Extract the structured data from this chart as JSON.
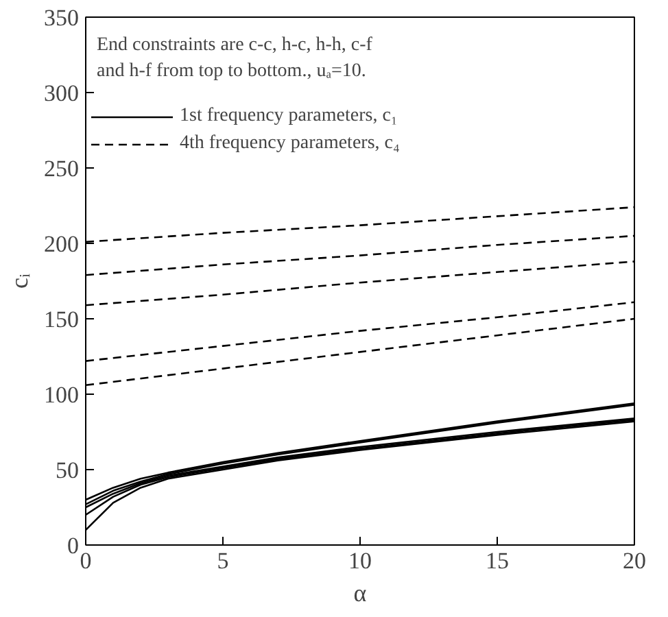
{
  "chart_data": {
    "type": "line",
    "xlabel": "α",
    "ylabel": "cᵢ",
    "annotations": [
      "End constraints are c-c, h-c, h-h, c-f",
      "and h-f from top to bottom., uₐ=10."
    ],
    "x": [
      0,
      1,
      2,
      3,
      5,
      7,
      10,
      15,
      20
    ],
    "series": [
      {
        "name": "1st frequency parameters, c₁",
        "color": "#000000",
        "line_style": "solid",
        "values": [
          30,
          38,
          44,
          48,
          55,
          61,
          69,
          82,
          94
        ]
      },
      {
        "color": "#000000",
        "line_style": "solid",
        "values": [
          27,
          36,
          42,
          47,
          54,
          60,
          68,
          81,
          93
        ]
      },
      {
        "color": "#000000",
        "line_style": "solid",
        "values": [
          25,
          34,
          41,
          46,
          52,
          58,
          65,
          75,
          84
        ]
      },
      {
        "color": "#000000",
        "line_style": "solid",
        "values": [
          20,
          32,
          40,
          45,
          51,
          57,
          64,
          74,
          83
        ]
      },
      {
        "color": "#000000",
        "line_style": "solid",
        "values": [
          10,
          28,
          38,
          44,
          50,
          56,
          63,
          73,
          82
        ]
      },
      {
        "name": "4th frequency parameters, c₄",
        "color": "#000000",
        "line_style": "dashed",
        "x": [
          0,
          5,
          10,
          15,
          20
        ],
        "values": [
          201,
          207,
          212,
          218,
          224
        ]
      },
      {
        "color": "#000000",
        "line_style": "dashed",
        "x": [
          0,
          5,
          10,
          15,
          20
        ],
        "values": [
          179,
          186,
          192,
          199,
          205
        ]
      },
      {
        "color": "#000000",
        "line_style": "dashed",
        "x": [
          0,
          5,
          10,
          15,
          20
        ],
        "values": [
          159,
          166,
          174,
          181,
          188
        ]
      },
      {
        "color": "#000000",
        "line_style": "dashed",
        "x": [
          0,
          5,
          10,
          15,
          20
        ],
        "values": [
          122,
          132,
          142,
          151,
          161
        ]
      },
      {
        "color": "#000000",
        "line_style": "dashed",
        "x": [
          0,
          5,
          10,
          15,
          20
        ],
        "values": [
          106,
          117,
          128,
          139,
          150
        ]
      }
    ],
    "xlim": [
      0,
      20
    ],
    "xticks": [
      0,
      5,
      10,
      15,
      20
    ],
    "ylim": [
      0,
      350
    ],
    "yticks": [
      0,
      50,
      100,
      150,
      200,
      250,
      300,
      350
    ],
    "grid": false,
    "legend": "top left",
    "marker": "none"
  }
}
